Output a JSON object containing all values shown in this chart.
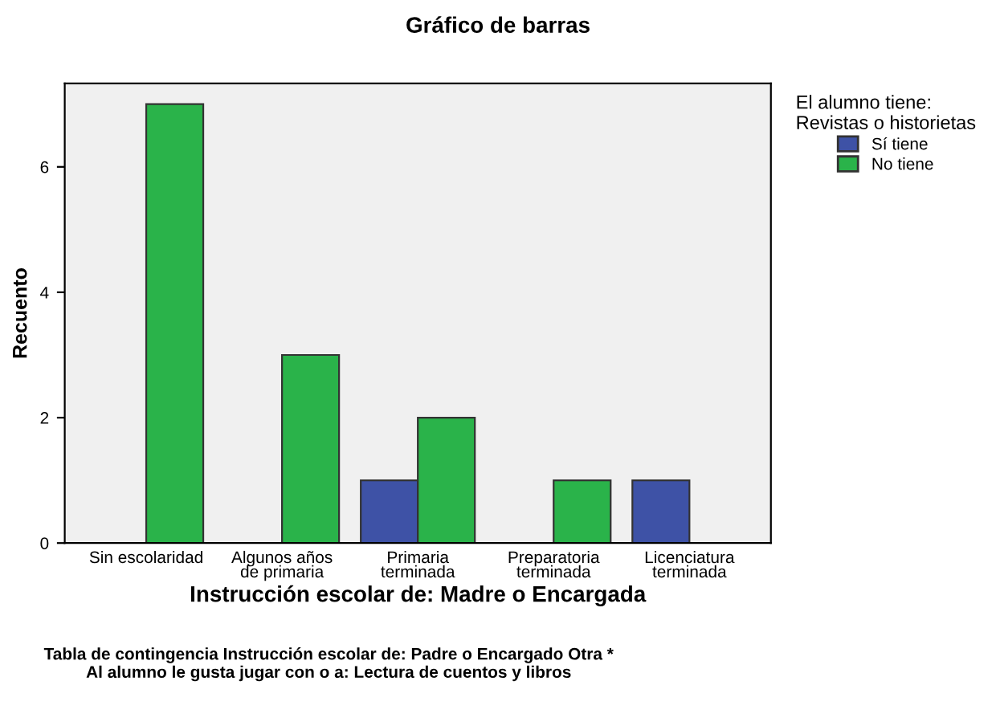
{
  "chart_data": {
    "type": "bar",
    "title": "Gráfico de barras",
    "xlabel": "Instrucción escolar de: Madre o Encargada",
    "ylabel": "Recuento",
    "legend_title": "El alumno tiene:\nRevistas o historietas",
    "legend": "top right",
    "categories": [
      "Sin escolaridad",
      "Algunos años\nde primaria",
      "Primaria\nterminada",
      "Preparatoria\nterminada",
      "Licenciatura\nterminada"
    ],
    "series": [
      {
        "name": "Sí tiene",
        "color": "#3e52a6",
        "values": [
          null,
          null,
          1,
          null,
          1
        ]
      },
      {
        "name": "No tiene",
        "color": "#2ab34a",
        "values": [
          7,
          3,
          2,
          1,
          null
        ]
      }
    ],
    "ylim": [
      0,
      7.33
    ],
    "yticks": [
      0,
      2,
      4,
      6
    ],
    "grid": false,
    "annotations": [
      "Tabla de contingencia Instrucción escolar de: Padre o Encargado Otra *\nAl alumno le gusta jugar con o a: Lectura de cuentos y libros"
    ]
  }
}
